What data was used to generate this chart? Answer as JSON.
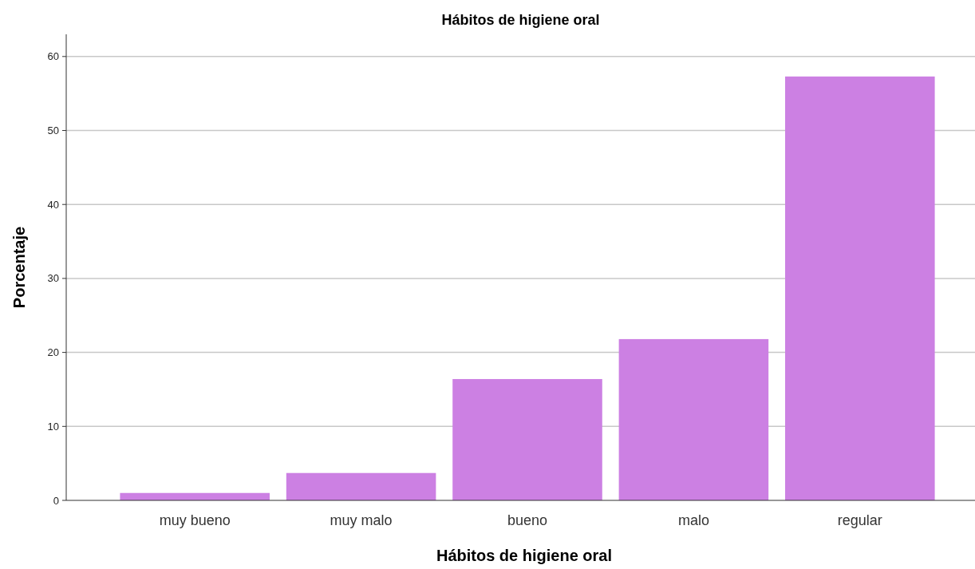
{
  "chart_data": {
    "type": "bar",
    "title": "Hábitos de higiene oral",
    "xlabel": "Hábitos de higiene oral",
    "ylabel": "Porcentaje",
    "categories": [
      "muy bueno",
      "muy malo",
      "bueno",
      "malo",
      "regular"
    ],
    "values": [
      1.0,
      3.7,
      16.4,
      21.8,
      57.3
    ],
    "color": "#cc80e3",
    "ylim": [
      0,
      63
    ],
    "yticks": [
      0,
      10,
      20,
      30,
      40,
      50,
      60
    ],
    "grid": "y"
  }
}
